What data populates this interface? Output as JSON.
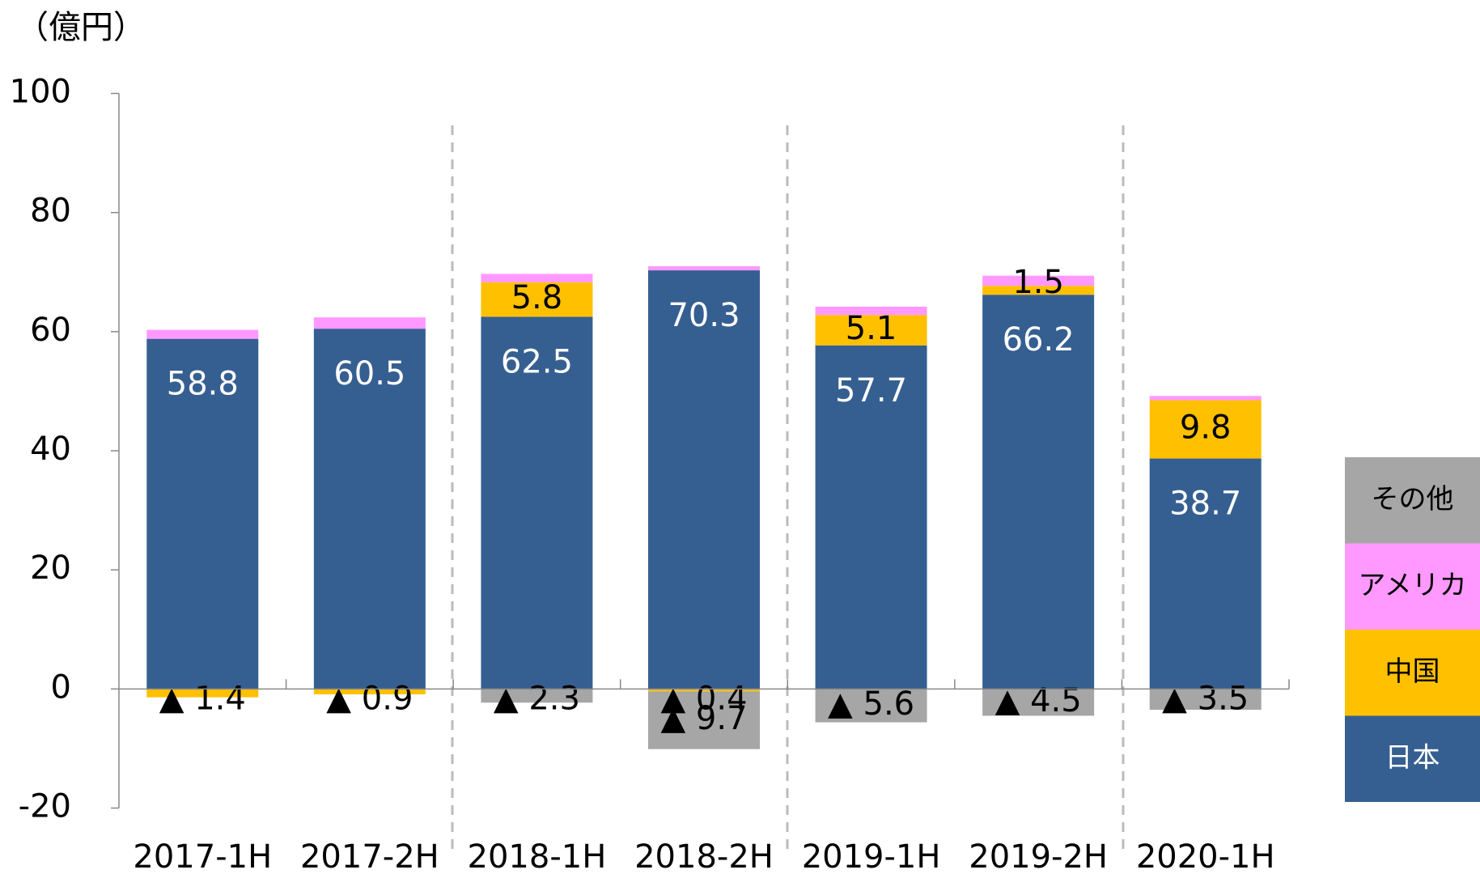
{
  "chart_data": {
    "type": "bar",
    "stacked": true,
    "y_label": "（億円）",
    "categories": [
      "2017-1H",
      "2017-2H",
      "2018-1H",
      "2018-2H",
      "2019-1H",
      "2019-2H",
      "2020-1H"
    ],
    "series": [
      {
        "name": "日本",
        "color": "#365f91",
        "values": [
          58.8,
          60.5,
          62.5,
          70.3,
          57.7,
          66.2,
          38.7
        ]
      },
      {
        "name": "中国",
        "color": "#ffc000",
        "values": [
          -1.4,
          -0.9,
          5.8,
          -0.4,
          5.1,
          1.5,
          9.8
        ],
        "value_labels": [
          "▲ 1.4",
          "▲ 0.9",
          "5.8",
          "▲ 0.4",
          "5.1",
          "1.5",
          "9.8"
        ]
      },
      {
        "name": "アメリカ",
        "color": "#ff99ff",
        "values": [
          1.5,
          1.9,
          1.4,
          0.7,
          1.4,
          1.7,
          0.7
        ]
      },
      {
        "name": "その他",
        "color": "#a6a6a6",
        "values": [
          null,
          null,
          -2.3,
          -9.7,
          -5.6,
          -4.5,
          -3.5
        ],
        "value_labels": [
          null,
          null,
          "▲ 2.3",
          "▲ 9.7",
          "▲ 5.6",
          "▲ 4.5",
          "▲ 3.5"
        ]
      }
    ],
    "ylim": [
      -20,
      100
    ],
    "yticks": [
      -20,
      0,
      20,
      40,
      60,
      80,
      100
    ],
    "legend": "right"
  }
}
